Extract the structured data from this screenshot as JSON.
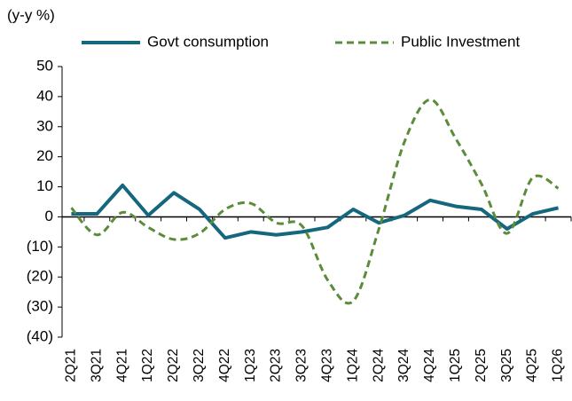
{
  "chart_data": {
    "type": "line",
    "y_label": "(y-y %)",
    "categories": [
      "2Q21",
      "3Q21",
      "4Q21",
      "1Q22",
      "2Q22",
      "3Q22",
      "4Q22",
      "1Q23",
      "2Q23",
      "3Q23",
      "4Q23",
      "1Q24",
      "2Q24",
      "3Q24",
      "4Q24",
      "1Q25",
      "2Q25",
      "3Q25",
      "4Q25",
      "1Q26"
    ],
    "series": [
      {
        "name": "Govt consumption",
        "color": "#15677d",
        "dashed": false,
        "smooth": false,
        "values": [
          1,
          1,
          10.5,
          0.5,
          8,
          2.5,
          -7,
          -5,
          -6,
          -5,
          -3.5,
          2.5,
          -2,
          0.5,
          5.5,
          3.5,
          2.5,
          -4,
          1,
          3
        ]
      },
      {
        "name": "Public Investment",
        "color": "#5b8c3a",
        "dashed": true,
        "smooth": true,
        "values": [
          3,
          -6,
          1.5,
          -3.5,
          -7.5,
          -5.5,
          2.5,
          4.5,
          -2,
          -3,
          -21,
          -28,
          -4,
          25,
          39,
          26,
          11,
          -5.5,
          13,
          9.5
        ]
      }
    ],
    "ylim": [
      -40,
      50
    ],
    "yticks": [
      {
        "value": -40,
        "label": "(40)"
      },
      {
        "value": -30,
        "label": "(30)"
      },
      {
        "value": -20,
        "label": "(20)"
      },
      {
        "value": -10,
        "label": "(10)"
      },
      0,
      10,
      20,
      30,
      40,
      50
    ],
    "legend": "top",
    "grid": false
  }
}
